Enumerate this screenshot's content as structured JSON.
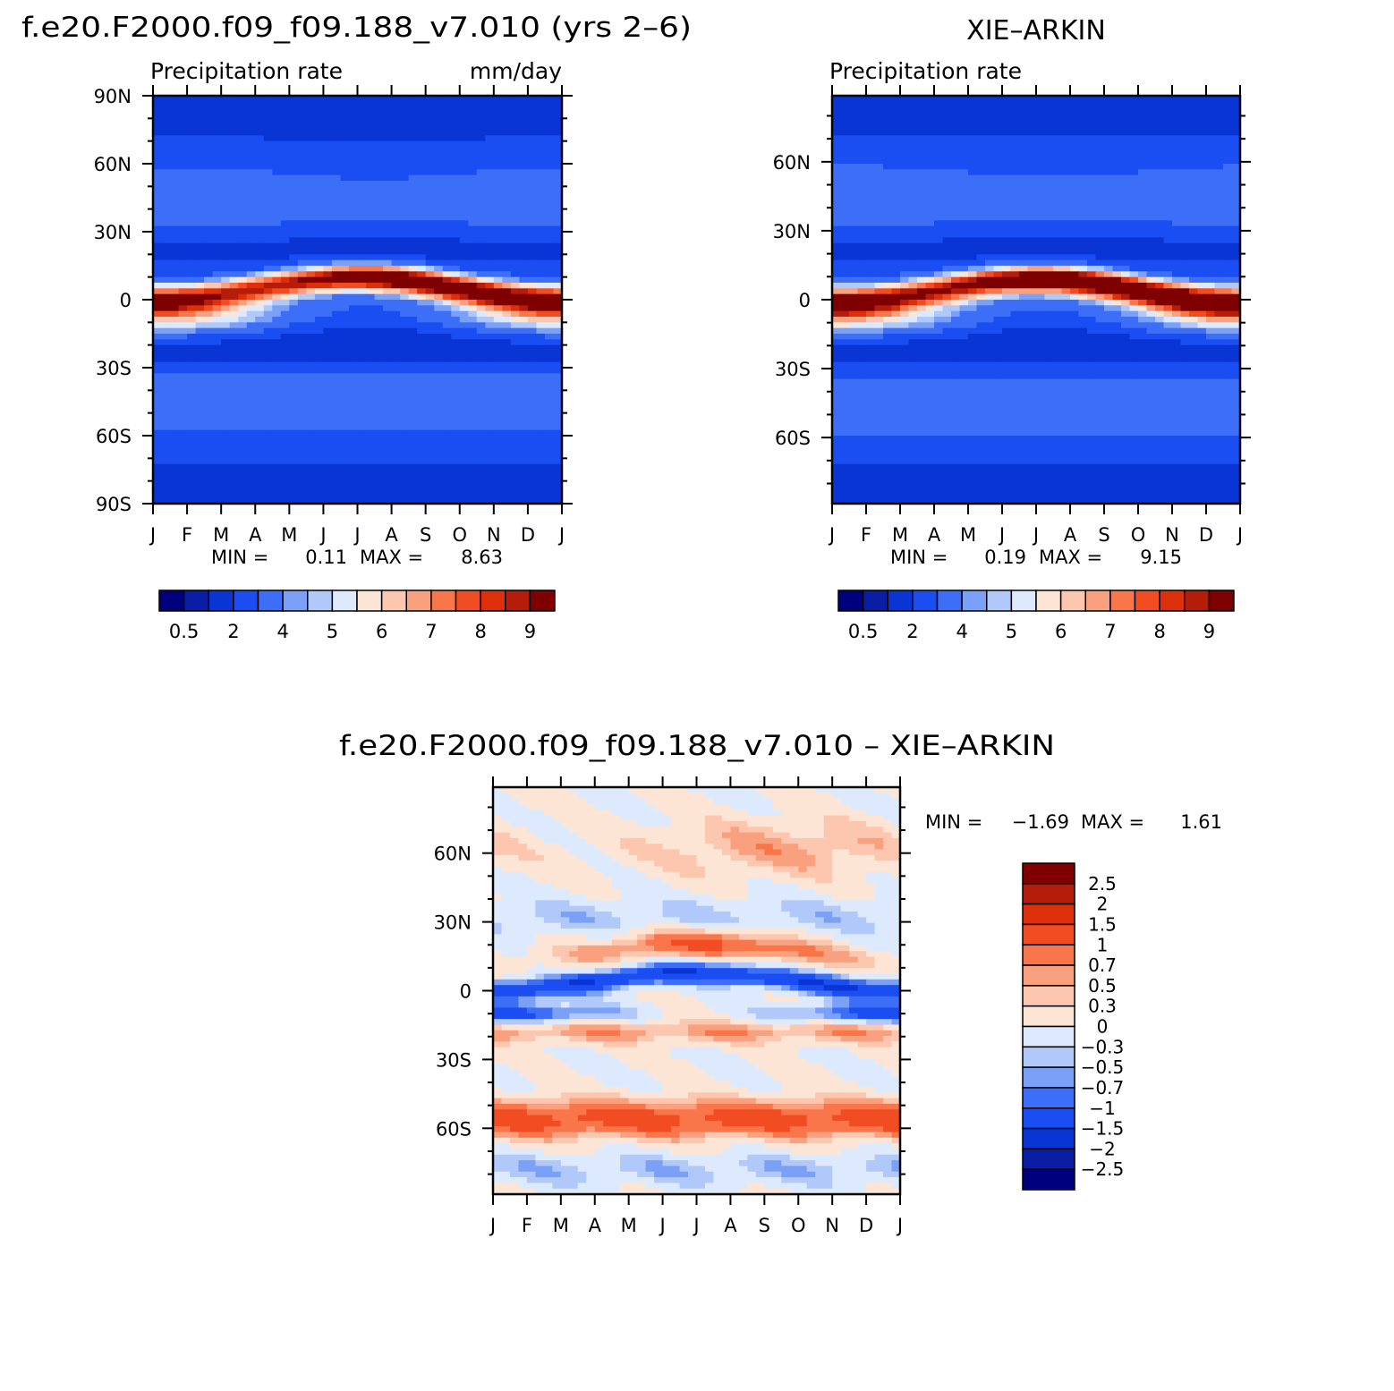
{
  "months": [
    "J",
    "F",
    "M",
    "A",
    "M",
    "J",
    "J",
    "A",
    "S",
    "O",
    "N",
    "D",
    "J"
  ],
  "mean_levels": {
    "colors": [
      "#00007f",
      "#0a1ea5",
      "#0a35d5",
      "#1a4ef2",
      "#3d6ef8",
      "#7aa0f8",
      "#b0c8fa",
      "#ddeafd",
      "#fde5d6",
      "#fdc6ae",
      "#f9a07e",
      "#f9764a",
      "#f24d22",
      "#dd300a",
      "#b51d0a",
      "#7f0000"
    ],
    "tick_labels": [
      "0.5",
      "2",
      "4",
      "5",
      "6",
      "7",
      "8",
      "9"
    ]
  },
  "diff_levels": {
    "colors": [
      "#00007f",
      "#0a1ea5",
      "#0a35d5",
      "#1a4ef2",
      "#3d6ef8",
      "#7aa0f8",
      "#b0c8fa",
      "#ddeafd",
      "#fde5d6",
      "#fdc6ae",
      "#f9a07e",
      "#f9764a",
      "#f24d22",
      "#dd300a",
      "#b51d0a",
      "#7f0000"
    ],
    "labels": [
      "2.5",
      "2",
      "1.5",
      "1",
      "0.7",
      "0.5",
      "0.3",
      "0",
      "−0.3",
      "−0.5",
      "−0.7",
      "−1",
      "−1.5",
      "−2",
      "−2.5"
    ]
  },
  "chart_data": [
    {
      "type": "heatmap",
      "title": "f.e20.F2000.f09_f09.188_v7.010 (yrs 2–6)",
      "subtitle_left": "Precipitation rate",
      "subtitle_right": "mm/day",
      "x_tick_labels": [
        "J",
        "F",
        "M",
        "A",
        "M",
        "J",
        "J",
        "A",
        "S",
        "O",
        "N",
        "D",
        "J"
      ],
      "y_tick_labels": [
        "90N",
        "60N",
        "30N",
        "0",
        "30S",
        "60S",
        "90S"
      ],
      "ylim": [
        -90,
        90
      ],
      "min_label": "MIN =",
      "min_value": "0.11",
      "max_label": "MAX =",
      "max_value": "8.63",
      "levels": [
        0.5,
        1,
        2,
        3,
        4,
        4.5,
        5,
        5.5,
        6,
        6.5,
        7,
        7.5,
        8,
        8.5,
        9
      ],
      "features": {
        "itcz_peak": 8.6,
        "itcz_lat_jan": 5,
        "itcz_lat_aug": 9
      }
    },
    {
      "type": "heatmap",
      "title": "XIE–ARKIN",
      "subtitle_left": "Precipitation rate",
      "x_tick_labels": [
        "J",
        "F",
        "M",
        "A",
        "M",
        "J",
        "J",
        "A",
        "S",
        "O",
        "N",
        "D",
        "J"
      ],
      "y_tick_labels": [
        "60N",
        "30N",
        "0",
        "30S",
        "60S"
      ],
      "ylim": [
        -88.75,
        88.75
      ],
      "min_label": "MIN =",
      "min_value": "0.19",
      "max_label": "MAX =",
      "max_value": "9.15",
      "levels": [
        0.5,
        1,
        2,
        3,
        4,
        4.5,
        5,
        5.5,
        6,
        6.5,
        7,
        7.5,
        8,
        8.5,
        9
      ],
      "features": {
        "itcz_peak": 9.1,
        "itcz_lat_jan": 4,
        "itcz_lat_aug": 9
      }
    },
    {
      "type": "heatmap",
      "title": "f.e20.F2000.f09_f09.188_v7.010 – XIE–ARKIN",
      "x_tick_labels": [
        "J",
        "F",
        "M",
        "A",
        "M",
        "J",
        "J",
        "A",
        "S",
        "O",
        "N",
        "D",
        "J"
      ],
      "y_tick_labels": [
        "60N",
        "30N",
        "0",
        "30S",
        "60S"
      ],
      "ylim": [
        -88.75,
        88.75
      ],
      "min_label": "MIN =",
      "min_value": "−1.69",
      "max_label": "MAX =",
      "max_value": "1.61",
      "levels": [
        -2.5,
        -2,
        -1.5,
        -1,
        -0.7,
        -0.5,
        -0.3,
        0,
        0.3,
        0.5,
        0.7,
        1,
        1.5,
        2,
        2.5
      ]
    }
  ]
}
